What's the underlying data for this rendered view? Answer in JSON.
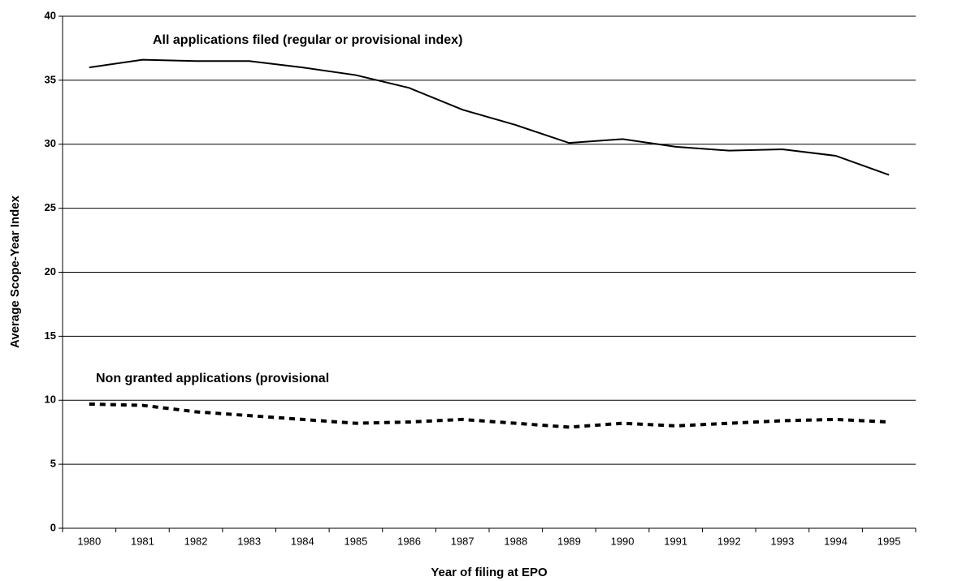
{
  "chart_data": {
    "type": "line",
    "x_label": "Year of filing at EPO",
    "y_label": "Average Scope-Year Index",
    "categories": [
      "1980",
      "1981",
      "1982",
      "1983",
      "1984",
      "1985",
      "1986",
      "1987",
      "1988",
      "1989",
      "1990",
      "1991",
      "1992",
      "1993",
      "1994",
      "1995"
    ],
    "series": [
      {
        "name": "All applications filed (regular or provisional index)",
        "color": "#000000",
        "style": "solid",
        "values": [
          36.0,
          36.6,
          36.5,
          36.5,
          36.0,
          35.4,
          34.4,
          32.7,
          31.5,
          30.1,
          30.4,
          29.8,
          29.5,
          29.6,
          29.1,
          27.6
        ]
      },
      {
        "name": "Non granted applications (provisional",
        "color": "#000000",
        "style": "dashed",
        "values": [
          9.7,
          9.6,
          9.1,
          8.8,
          8.5,
          8.2,
          8.3,
          8.5,
          8.2,
          7.9,
          8.2,
          8.0,
          8.2,
          8.4,
          8.5,
          8.3
        ]
      }
    ],
    "ylim": [
      0,
      40
    ],
    "yticks": [
      0,
      5,
      10,
      15,
      20,
      25,
      30,
      35,
      40
    ],
    "grid": true
  }
}
